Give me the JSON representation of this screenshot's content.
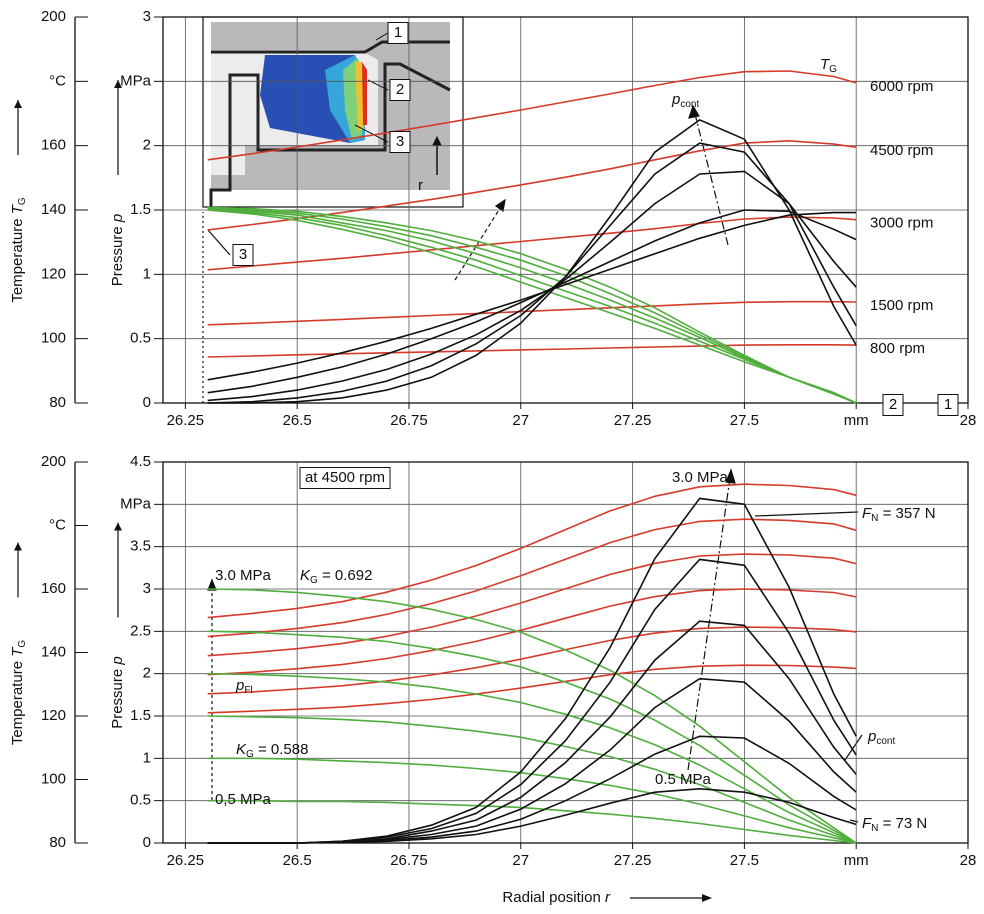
{
  "chart_data": [
    {
      "type": "line",
      "x": [
        26.3,
        26.4,
        26.5,
        26.6,
        26.7,
        26.8,
        26.9,
        27.0,
        27.1,
        27.2,
        27.3,
        27.4,
        27.5,
        27.6,
        27.7,
        27.75
      ],
      "xlim": [
        26.2,
        28
      ],
      "xticks": [
        26.25,
        26.5,
        26.75,
        27,
        27.25,
        27.5,
        {
          "value": 27.75,
          "label": "mm"
        },
        28
      ],
      "ylim": [
        0,
        3
      ],
      "yticks": [
        0,
        0.5,
        1,
        1.5,
        2,
        {
          "value": 2.5,
          "label": "MPa"
        },
        3
      ],
      "y2lim": [
        80,
        200
      ],
      "y2ticks": [
        80,
        100,
        120,
        140,
        160,
        {
          "value": 180,
          "label": "°C"
        },
        200
      ],
      "ylabel": "Pressure",
      "ylabel_var": "p",
      "y2label": "Temperature",
      "y2label_var": "T",
      "y2label_sub": "G",
      "grid": true,
      "series": [
        {
          "name": "800 rpm",
          "color": "#d63a2a",
          "axis": "y2",
          "values": [
            94.3,
            94.6,
            95.0,
            95.3,
            95.6,
            95.9,
            96.2,
            96.5,
            96.8,
            97.1,
            97.4,
            97.7,
            98.0,
            98.1,
            98.1,
            98.0
          ]
        },
        {
          "name": "1500 rpm",
          "color": "#d63a2a",
          "axis": "y2",
          "values": [
            104.3,
            104.8,
            105.4,
            106.0,
            106.6,
            107.2,
            107.8,
            108.4,
            109.0,
            109.6,
            110.2,
            110.8,
            111.3,
            111.5,
            111.5,
            111.4
          ]
        },
        {
          "name": "3000 rpm",
          "color": "#d63a2a",
          "axis": "y2",
          "values": [
            121.4,
            122.6,
            123.8,
            125.0,
            126.3,
            127.6,
            128.9,
            130.2,
            131.5,
            132.8,
            134.2,
            135.8,
            137.2,
            137.8,
            137.5,
            137.0
          ]
        },
        {
          "name": "4500 rpm",
          "color": "#d63a2a",
          "axis": "y2",
          "values": [
            133.8,
            135.5,
            137.3,
            139.2,
            141.2,
            143.3,
            145.5,
            147.8,
            150.2,
            152.8,
            155.6,
            158.4,
            160.8,
            161.5,
            160.5,
            159.5
          ]
        },
        {
          "name": "6000 rpm",
          "color": "#d63a2a",
          "axis": "y2",
          "values": [
            155.6,
            157.5,
            159.6,
            161.8,
            164.0,
            166.3,
            168.7,
            171.1,
            173.6,
            176.1,
            178.7,
            181.2,
            183.0,
            183.2,
            181.5,
            179.5
          ]
        },
        {
          "color": "#4fae3c",
          "values": [
            1.5,
            1.47,
            1.42,
            1.35,
            1.27,
            1.17,
            1.06,
            0.94,
            0.82,
            0.7,
            0.58,
            0.45,
            0.32,
            0.2,
            0.08,
            0
          ]
        },
        {
          "color": "#4fae3c",
          "values": [
            1.505,
            1.48,
            1.44,
            1.38,
            1.3,
            1.21,
            1.11,
            0.99,
            0.87,
            0.75,
            0.62,
            0.48,
            0.34,
            0.2,
            0.08,
            0
          ]
        },
        {
          "color": "#4fae3c",
          "values": [
            1.51,
            1.49,
            1.46,
            1.4,
            1.34,
            1.26,
            1.16,
            1.05,
            0.93,
            0.8,
            0.66,
            0.51,
            0.35,
            0.2,
            0.075,
            0
          ]
        },
        {
          "color": "#4fae3c",
          "values": [
            1.515,
            1.5,
            1.475,
            1.43,
            1.37,
            1.3,
            1.21,
            1.11,
            0.99,
            0.85,
            0.7,
            0.53,
            0.36,
            0.2,
            0.07,
            0
          ]
        },
        {
          "color": "#4fae3c",
          "values": [
            1.52,
            1.51,
            1.49,
            1.45,
            1.4,
            1.34,
            1.26,
            1.16,
            1.04,
            0.9,
            0.74,
            0.55,
            0.37,
            0.2,
            0.07,
            0
          ]
        },
        {
          "color": "#111111",
          "values": [
            0.18,
            0.24,
            0.31,
            0.39,
            0.48,
            0.58,
            0.69,
            0.8,
            0.92,
            1.04,
            1.16,
            1.28,
            1.38,
            1.46,
            1.48,
            1.48
          ]
        },
        {
          "color": "#111111",
          "values": [
            0.08,
            0.13,
            0.2,
            0.28,
            0.38,
            0.5,
            0.63,
            0.78,
            0.94,
            1.1,
            1.26,
            1.4,
            1.5,
            1.49,
            1.35,
            1.27
          ]
        },
        {
          "color": "#111111",
          "values": [
            0.02,
            0.05,
            0.1,
            0.17,
            0.26,
            0.38,
            0.53,
            0.72,
            0.96,
            1.25,
            1.55,
            1.78,
            1.8,
            1.55,
            1.1,
            0.9
          ]
        },
        {
          "color": "#111111",
          "values": [
            0,
            0.01,
            0.04,
            0.09,
            0.17,
            0.29,
            0.46,
            0.68,
            0.98,
            1.38,
            1.78,
            2.02,
            1.95,
            1.55,
            0.9,
            0.6
          ]
        },
        {
          "color": "#111111",
          "values": [
            0,
            0,
            0.01,
            0.04,
            0.1,
            0.2,
            0.37,
            0.62,
            0.98,
            1.45,
            1.95,
            2.2,
            2.05,
            1.5,
            0.75,
            0.45
          ]
        }
      ],
      "annotations": [
        {
          "text": "T",
          "sub": "G",
          "color": "#d63a2a"
        },
        {
          "text": "p",
          "sub": "cont"
        },
        {
          "text": "1"
        },
        {
          "text": "2"
        },
        {
          "text": "3"
        },
        {
          "text": "r"
        },
        {
          "text": "3"
        },
        {
          "text": "2"
        },
        {
          "text": "1"
        }
      ]
    },
    {
      "type": "line",
      "x": [
        26.3,
        26.4,
        26.5,
        26.6,
        26.7,
        26.8,
        26.9,
        27.0,
        27.1,
        27.2,
        27.3,
        27.4,
        27.5,
        27.6,
        27.7,
        27.75
      ],
      "xlim": [
        26.2,
        28
      ],
      "xticks": [
        26.25,
        26.5,
        26.75,
        27,
        27.25,
        27.5,
        {
          "value": 27.75,
          "label": "mm"
        },
        28
      ],
      "ylim": [
        0,
        4.5
      ],
      "yticks": [
        0,
        0.5,
        1,
        1.5,
        2,
        2.5,
        3,
        3.5,
        {
          "value": 4,
          "label": "MPa"
        },
        4.5
      ],
      "y2lim": [
        80,
        200
      ],
      "y2ticks": [
        80,
        100,
        120,
        140,
        160,
        {
          "value": 180,
          "label": "°C"
        },
        200
      ],
      "ylabel": "Pressure",
      "ylabel_var": "p",
      "y2label": "Temperature",
      "y2label_var": "T",
      "y2label_sub": "G",
      "xlabel": "Radial position",
      "xlabel_var": "r",
      "grid": true,
      "series": [
        {
          "color": "#d63a2a",
          "axis": "y2",
          "values": [
            121,
            121.5,
            122.1,
            122.8,
            123.9,
            125.2,
            126.9,
            128.8,
            130.9,
            133,
            134.7,
            135.7,
            136,
            135.9,
            135.4,
            135
          ]
        },
        {
          "color": "#d63a2a",
          "axis": "y2",
          "values": [
            127,
            127.6,
            128.5,
            129.5,
            131,
            132.9,
            135.2,
            137.9,
            140.9,
            143.8,
            146.1,
            147.6,
            148,
            147.8,
            147.2,
            146.5
          ]
        },
        {
          "color": "#d63a2a",
          "axis": "y2",
          "values": [
            133,
            133.8,
            134.9,
            136.2,
            138.1,
            140.6,
            143.5,
            147,
            150.8,
            154.6,
            157.6,
            159.5,
            160,
            159.7,
            158.9,
            157.5
          ]
        },
        {
          "color": "#d63a2a",
          "axis": "y2",
          "values": [
            139,
            140,
            141.2,
            142.8,
            145.1,
            148,
            151.5,
            155.6,
            160.1,
            164.6,
            168.1,
            170.4,
            171,
            170.7,
            169.7,
            168
          ]
        },
        {
          "color": "#d63a2a",
          "axis": "y2",
          "values": [
            145,
            146.1,
            147.6,
            149.4,
            152,
            155.4,
            159.4,
            164.2,
            169.4,
            174.6,
            178.7,
            181.3,
            182,
            181.6,
            180.5,
            178.5
          ]
        },
        {
          "color": "#d63a2a",
          "axis": "y2",
          "values": [
            151,
            152.3,
            153.9,
            156,
            159,
            162.8,
            167.4,
            172.8,
            178.7,
            184.6,
            189.2,
            192.2,
            193,
            192.6,
            191.3,
            189.5
          ]
        },
        {
          "color": "#4fae3c",
          "values": [
            3,
            2.99,
            2.96,
            2.91,
            2.85,
            2.76,
            2.64,
            2.49,
            2.28,
            2.04,
            1.74,
            1.38,
            0.96,
            0.54,
            0.18,
            0
          ]
        },
        {
          "color": "#4fae3c",
          "values": [
            2.5,
            2.49,
            2.46,
            2.43,
            2.38,
            2.3,
            2.2,
            2.08,
            1.9,
            1.7,
            1.45,
            1.15,
            0.8,
            0.45,
            0.15,
            0
          ]
        },
        {
          "color": "#4fae3c",
          "values": [
            2,
            1.99,
            1.97,
            1.94,
            1.9,
            1.84,
            1.76,
            1.66,
            1.52,
            1.36,
            1.16,
            0.92,
            0.64,
            0.36,
            0.12,
            0
          ]
        },
        {
          "color": "#4fae3c",
          "values": [
            1.5,
            1.49,
            1.48,
            1.46,
            1.43,
            1.38,
            1.32,
            1.25,
            1.14,
            1.02,
            0.87,
            0.69,
            0.48,
            0.27,
            0.09,
            0
          ]
        },
        {
          "color": "#4fae3c",
          "values": [
            1,
            1,
            0.99,
            0.97,
            0.95,
            0.92,
            0.88,
            0.83,
            0.76,
            0.68,
            0.58,
            0.46,
            0.32,
            0.18,
            0.06,
            0
          ]
        },
        {
          "color": "#4fae3c",
          "values": [
            0.5,
            0.5,
            0.49,
            0.49,
            0.48,
            0.46,
            0.44,
            0.42,
            0.38,
            0.34,
            0.29,
            0.23,
            0.16,
            0.09,
            0.03,
            0
          ]
        },
        {
          "color": "#111111",
          "values": [
            0,
            0,
            0,
            0.01,
            0.02,
            0.05,
            0.1,
            0.2,
            0.33,
            0.47,
            0.6,
            0.64,
            0.6,
            0.48,
            0.3,
            0.22
          ]
        },
        {
          "color": "#111111",
          "values": [
            0,
            0,
            0,
            0.01,
            0.03,
            0.07,
            0.14,
            0.28,
            0.5,
            0.76,
            1.05,
            1.26,
            1.24,
            0.94,
            0.55,
            0.39
          ]
        },
        {
          "color": "#111111",
          "values": [
            0,
            0,
            0,
            0.01,
            0.04,
            0.1,
            0.2,
            0.4,
            0.7,
            1.1,
            1.6,
            1.94,
            1.9,
            1.44,
            0.84,
            0.6
          ]
        },
        {
          "color": "#111111",
          "values": [
            0,
            0,
            0,
            0.01,
            0.05,
            0.14,
            0.27,
            0.54,
            0.95,
            1.49,
            2.16,
            2.62,
            2.57,
            1.94,
            1.13,
            0.81
          ]
        },
        {
          "color": "#111111",
          "values": [
            0,
            0,
            0,
            0.02,
            0.07,
            0.17,
            0.35,
            0.69,
            1.21,
            1.9,
            2.76,
            3.35,
            3.28,
            2.48,
            1.45,
            1.04
          ]
        },
        {
          "color": "#111111",
          "values": [
            0,
            0,
            0,
            0.02,
            0.08,
            0.21,
            0.42,
            0.84,
            1.47,
            2.31,
            3.36,
            4.07,
            4.0,
            3.02,
            1.76,
            1.26
          ]
        }
      ],
      "annotations": [
        {
          "text": "at 4500 rpm"
        },
        {
          "text": "3.0 MPa"
        },
        {
          "text": "F",
          "sub": "N",
          "after": " = 357 N"
        },
        {
          "text": "3.0 MPa"
        },
        {
          "text": "K",
          "sub": "G",
          "after": " = 0.692",
          "color": "#4fae3c"
        },
        {
          "text": "p",
          "sub": "Fl",
          "color": "#4fae3c"
        },
        {
          "text": "K",
          "sub": "G",
          "after": " = 0.588",
          "color": "#4fae3c"
        },
        {
          "text": "0,5 MPa"
        },
        {
          "text": "0.5 MPa"
        },
        {
          "text": "p",
          "sub": "cont"
        },
        {
          "text": "F",
          "sub": "N",
          "after": " = 73 N"
        }
      ]
    }
  ]
}
